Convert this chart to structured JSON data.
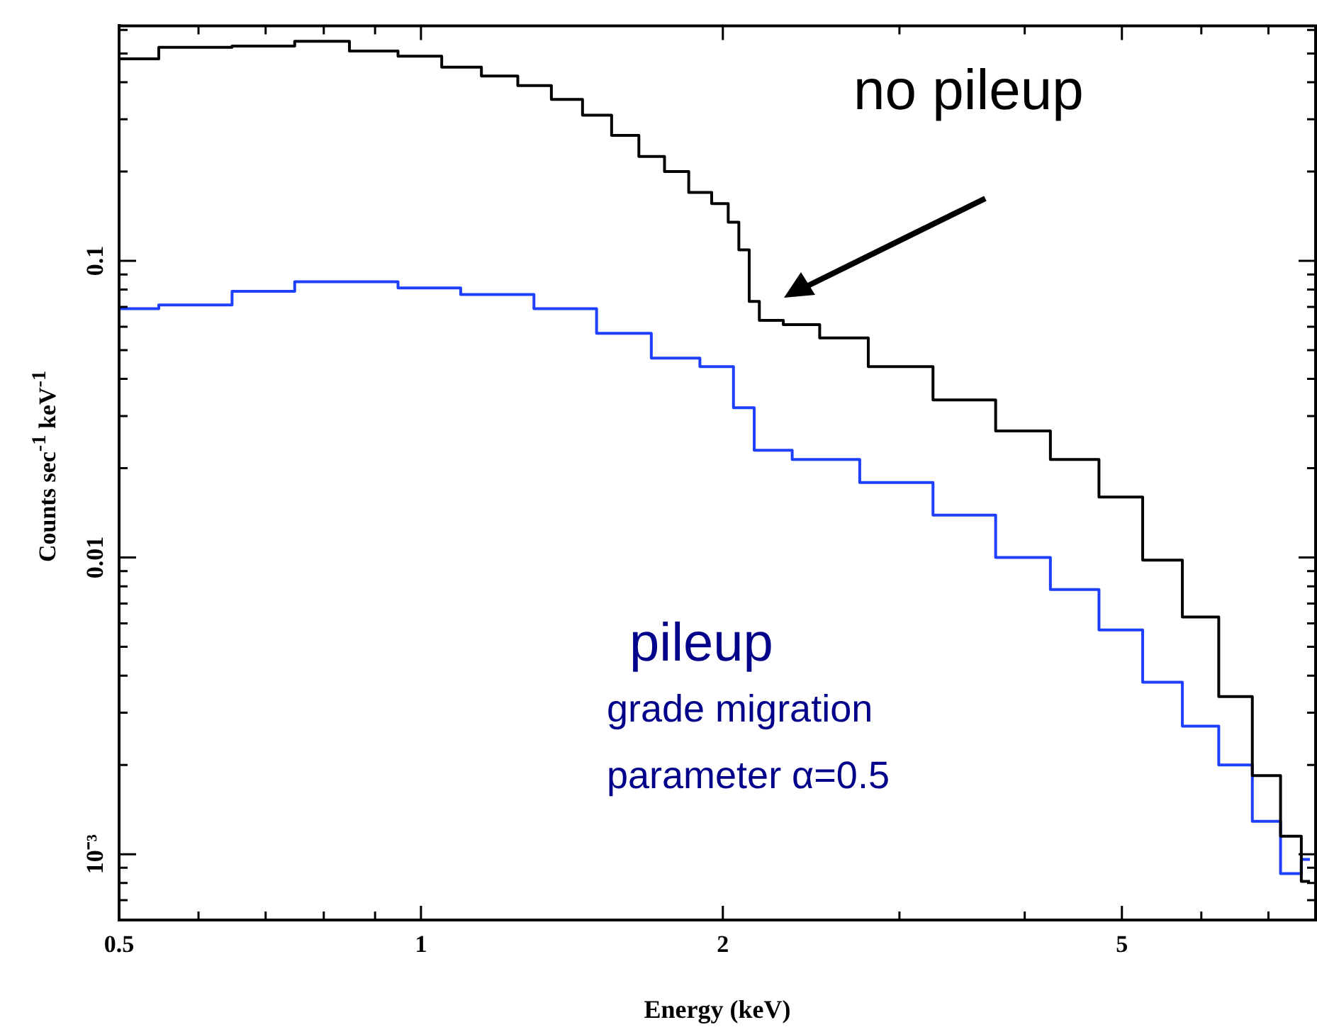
{
  "chart_data": {
    "type": "step",
    "xlabel": "Energy (keV)",
    "ylabel": "Counts sec$^{-1}$ keV$^{-1}$",
    "log": "xy",
    "grid": false,
    "xlim": [
      0.5,
      7.8
    ],
    "xticks": [
      0.5,
      {
        "value": 0.6,
        "label": null
      },
      {
        "value": 0.7,
        "label": null
      },
      {
        "value": 0.8,
        "label": null
      },
      {
        "value": 0.9,
        "label": null
      },
      1,
      2,
      {
        "value": 3,
        "label": null
      },
      {
        "value": 4,
        "label": null
      },
      5,
      {
        "value": 6,
        "label": null
      },
      {
        "value": 7,
        "label": null
      }
    ],
    "ylim": [
      0.00061,
      0.62
    ],
    "yticks": [
      {
        "value": 0.0007,
        "label": null
      },
      {
        "value": 0.0008,
        "label": null
      },
      {
        "value": 0.0009,
        "label": null
      },
      {
        "value": 0.001,
        "label": "10⁻³"
      },
      {
        "value": 0.002,
        "label": null
      },
      {
        "value": 0.003,
        "label": null
      },
      {
        "value": 0.004,
        "label": null
      },
      {
        "value": 0.005,
        "label": null
      },
      {
        "value": 0.006,
        "label": null
      },
      {
        "value": 0.007,
        "label": null
      },
      {
        "value": 0.008,
        "label": null
      },
      {
        "value": 0.009,
        "label": null
      },
      0.01,
      {
        "value": 0.02,
        "label": null
      },
      {
        "value": 0.03,
        "label": null
      },
      {
        "value": 0.04,
        "label": null
      },
      {
        "value": 0.05,
        "label": null
      },
      {
        "value": 0.06,
        "label": null
      },
      {
        "value": 0.07,
        "label": null
      },
      {
        "value": 0.08,
        "label": null
      },
      {
        "value": 0.09,
        "label": null
      },
      0.1,
      {
        "value": 0.2,
        "label": null
      },
      {
        "value": 0.3,
        "label": null
      },
      {
        "value": 0.4,
        "label": null
      },
      {
        "value": 0.5,
        "label": null
      },
      {
        "value": 0.6,
        "label": null
      }
    ],
    "legend": false,
    "series": [
      {
        "color": "#000000",
        "x": [
          0.5,
          0.6,
          0.7,
          0.8,
          0.9,
          1.0,
          1.1,
          1.2,
          1.3,
          1.4,
          1.5,
          1.6,
          1.7,
          1.8,
          1.9,
          2.0,
          2.05,
          2.1,
          2.15,
          2.2,
          2.4,
          2.6,
          3.0,
          3.5,
          4.0,
          4.5,
          5.0,
          5.5,
          6.0,
          6.5,
          7.0,
          7.4,
          7.7
        ],
        "values": [
          0.48,
          0.525,
          0.53,
          0.55,
          0.51,
          0.49,
          0.45,
          0.42,
          0.39,
          0.35,
          0.31,
          0.265,
          0.225,
          0.2,
          0.17,
          0.156,
          0.135,
          0.109,
          0.073,
          0.063,
          0.061,
          0.055,
          0.044,
          0.034,
          0.0267,
          0.0214,
          0.016,
          0.0098,
          0.0063,
          0.0034,
          0.00184,
          0.00115,
          0.00081
        ]
      },
      {
        "color": "#1f3fff",
        "x": [
          0.5,
          0.6,
          0.7,
          0.8,
          0.9,
          1.0,
          1.2,
          1.4,
          1.6,
          1.8,
          2.0,
          2.1,
          2.2,
          2.5,
          3.0,
          3.5,
          4.0,
          4.5,
          5.0,
          5.5,
          6.0,
          6.5,
          7.0,
          7.4,
          7.7
        ],
        "values": [
          0.069,
          0.071,
          0.079,
          0.085,
          0.085,
          0.081,
          0.077,
          0.069,
          0.057,
          0.047,
          0.044,
          0.032,
          0.023,
          0.0214,
          0.0179,
          0.0139,
          0.01,
          0.0078,
          0.0057,
          0.0038,
          0.0027,
          0.002,
          0.00129,
          0.00086,
          0.00096
        ]
      }
    ],
    "annotations": [
      "no pileup",
      "pileup",
      "grade migration",
      "parameter  α=0.5"
    ]
  }
}
